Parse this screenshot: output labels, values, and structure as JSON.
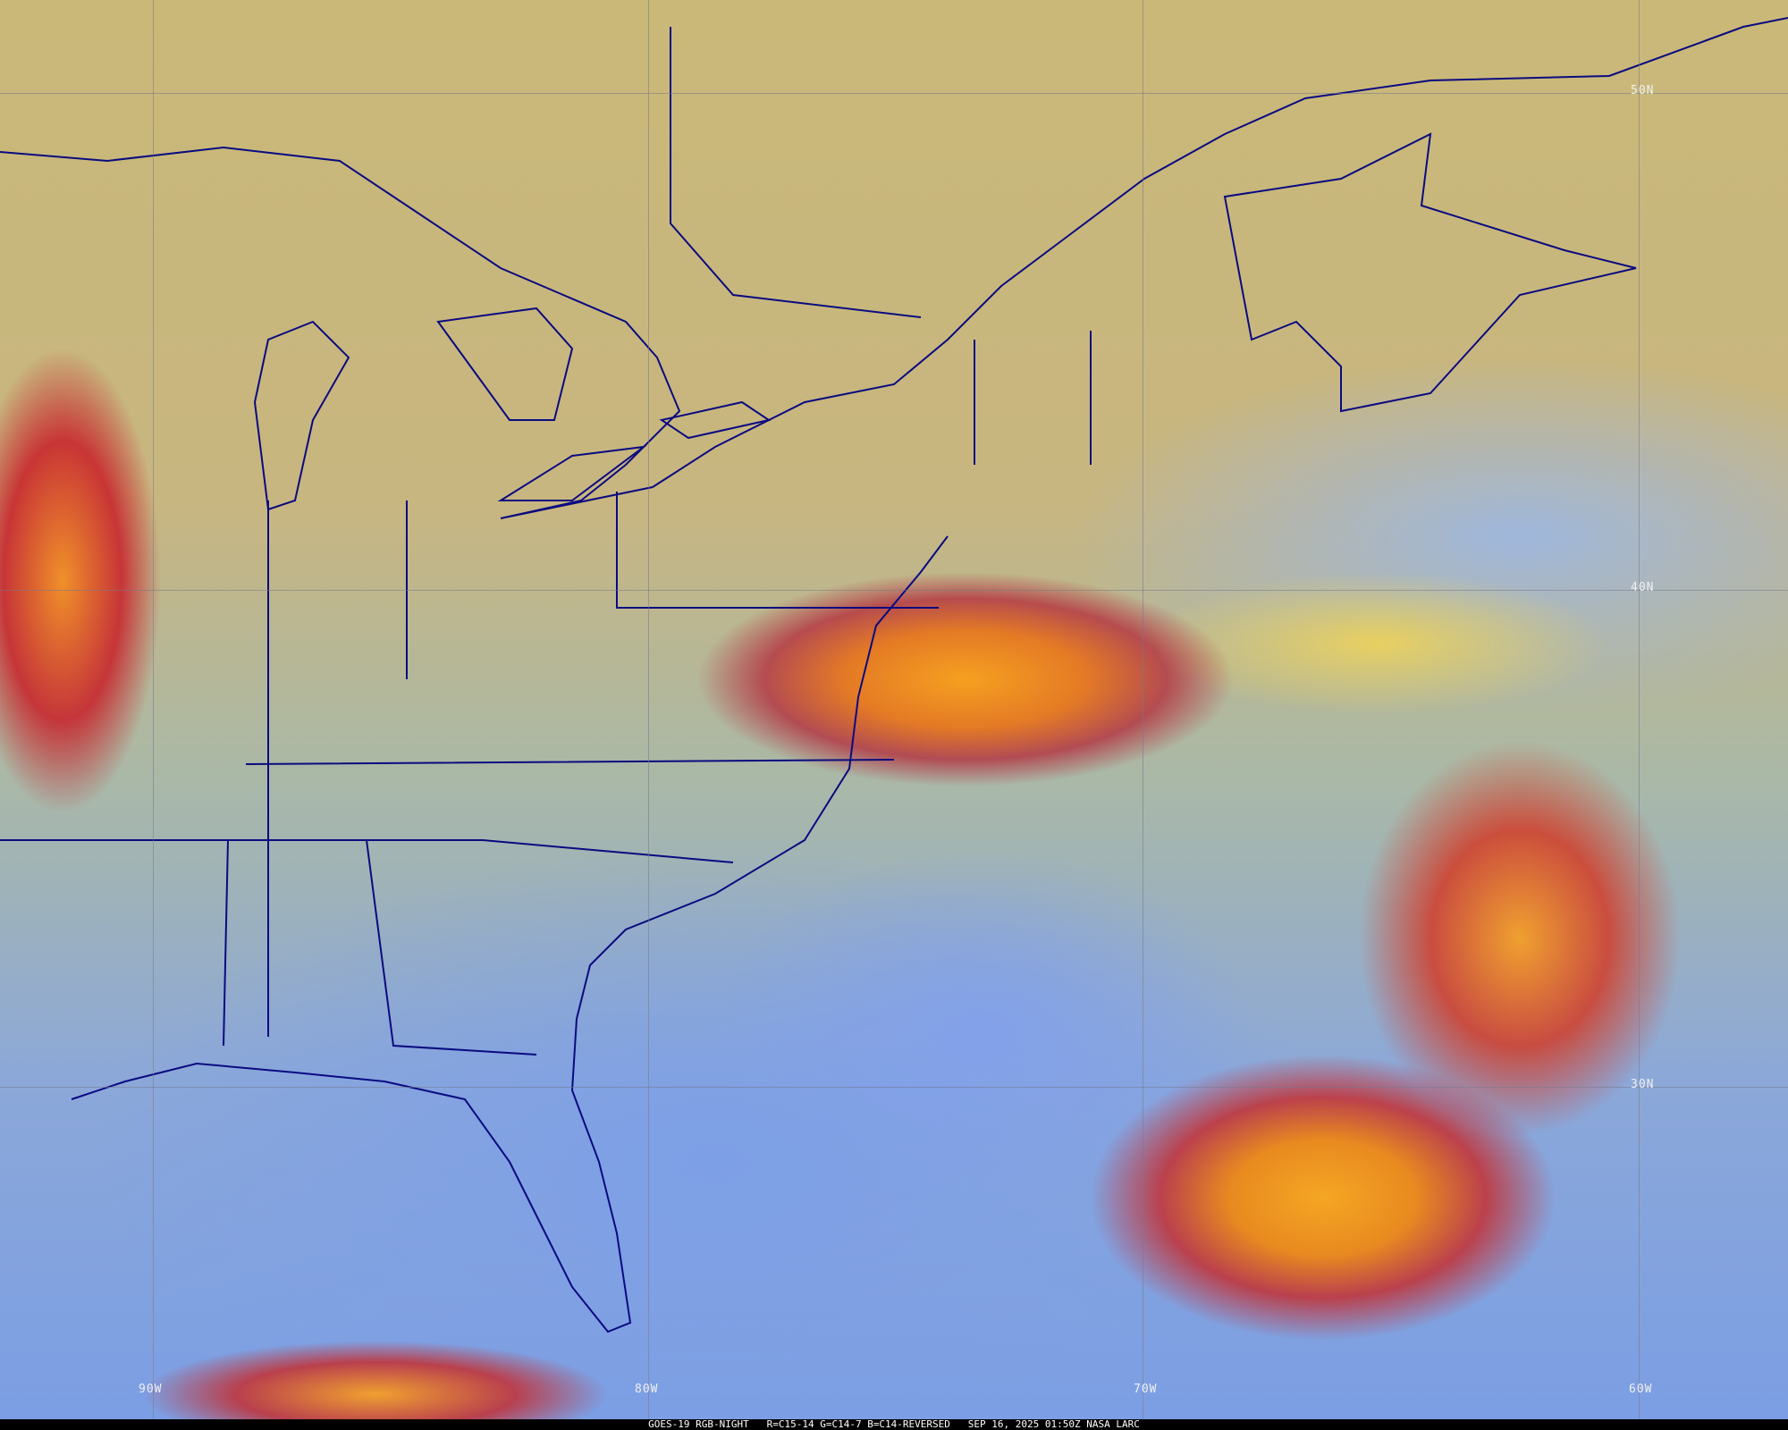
{
  "caption": "GOES-19 RGB-NIGHT   R=C15-14 G=C14-7 B=C14-REVERSED   SEP 16, 2025 01:50Z NASA LARC",
  "latitude_labels": [
    "50N",
    "40N",
    "30N"
  ],
  "longitude_labels": [
    "90W",
    "80W",
    "70W",
    "60W"
  ],
  "colors": {
    "boundaries": "#0a0a80",
    "grid": "#78788c",
    "deep_cloud": "#f5a623",
    "ocean_clear": "#7d9fe6"
  }
}
